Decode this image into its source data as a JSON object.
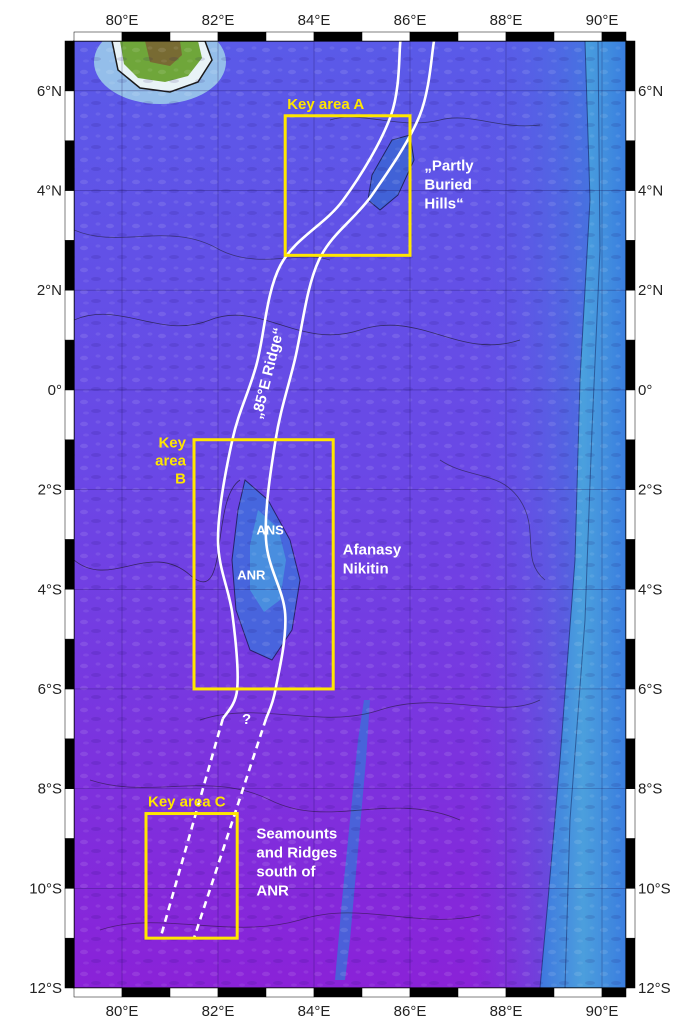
{
  "map": {
    "lon_range": [
      79,
      90.5
    ],
    "lat_range": [
      -12,
      7
    ],
    "lon_ticks": [
      {
        "value": 80,
        "label": "80°E"
      },
      {
        "value": 82,
        "label": "82°E"
      },
      {
        "value": 84,
        "label": "84°E"
      },
      {
        "value": 86,
        "label": "86°E"
      },
      {
        "value": 88,
        "label": "88°E"
      },
      {
        "value": 90,
        "label": "90°E"
      }
    ],
    "lat_ticks": [
      {
        "value": 6,
        "label": "6°N"
      },
      {
        "value": 4,
        "label": "4°N"
      },
      {
        "value": 2,
        "label": "2°N"
      },
      {
        "value": 0,
        "label": "0°"
      },
      {
        "value": -2,
        "label": "2°S"
      },
      {
        "value": -4,
        "label": "4°S"
      },
      {
        "value": -6,
        "label": "6°S"
      },
      {
        "value": -8,
        "label": "8°S"
      },
      {
        "value": -10,
        "label": "10°S"
      },
      {
        "value": -12,
        "label": "12°S"
      }
    ],
    "key_areas": [
      {
        "label_lines": [
          "Key area A"
        ],
        "lon": [
          83.4,
          86.0
        ],
        "lat": [
          2.7,
          5.5
        ]
      },
      {
        "label_lines": [
          "Key",
          "area",
          "B"
        ],
        "lon": [
          81.5,
          84.4
        ],
        "lat": [
          -6.0,
          -1.0
        ]
      },
      {
        "label_lines": [
          "Key area C"
        ],
        "lon": [
          80.5,
          82.4
        ],
        "lat": [
          -11.0,
          -8.5
        ]
      }
    ],
    "ridge_outline": {
      "west_lon_lat": [
        [
          85.8,
          7.0
        ],
        [
          85.6,
          5.5
        ],
        [
          84.6,
          3.8
        ],
        [
          83.3,
          2.5
        ],
        [
          82.8,
          0.5
        ],
        [
          82.3,
          -1.0
        ],
        [
          82.0,
          -3.0
        ],
        [
          82.3,
          -4.5
        ],
        [
          82.4,
          -6.0
        ],
        [
          82.1,
          -6.6
        ]
      ],
      "east_lon_lat": [
        [
          86.5,
          7.0
        ],
        [
          86.2,
          5.5
        ],
        [
          85.2,
          3.9
        ],
        [
          84.1,
          2.6
        ],
        [
          83.6,
          0.6
        ],
        [
          83.2,
          -1.0
        ],
        [
          83.0,
          -3.0
        ],
        [
          83.4,
          -4.5
        ],
        [
          83.2,
          -6.0
        ],
        [
          83.0,
          -6.6
        ]
      ],
      "west_extension": [
        [
          82.1,
          -6.6
        ],
        [
          80.8,
          -11.0
        ]
      ],
      "east_extension": [
        [
          83.0,
          -6.6
        ],
        [
          81.5,
          -11.0
        ]
      ]
    },
    "annotations": [
      {
        "lines": [
          "„Partly",
          "Buried",
          "Hills“"
        ],
        "lon": 86.3,
        "lat": 4.4
      },
      {
        "lines": [
          "Afanasy",
          "Nikitin"
        ],
        "lon": 84.6,
        "lat": -3.3
      },
      {
        "lines": [
          "Seamounts",
          "and Ridges",
          "south of",
          "ANR"
        ],
        "lon": 82.8,
        "lat": -9.0
      }
    ],
    "ridge_label": "„85°E    Ridge“",
    "small_labels": [
      {
        "text": "ANS",
        "lon": 82.8,
        "lat": -2.9
      },
      {
        "text": "ANR",
        "lon": 82.4,
        "lat": -3.8
      }
    ],
    "question_mark": "?",
    "colors": {
      "deep": "#6a1fd6",
      "mid": "#5a4fe8",
      "shallow": "#3f8ae0",
      "land": "#6fa63a",
      "box": "#ffe600",
      "ridge": "#ffffff"
    }
  }
}
